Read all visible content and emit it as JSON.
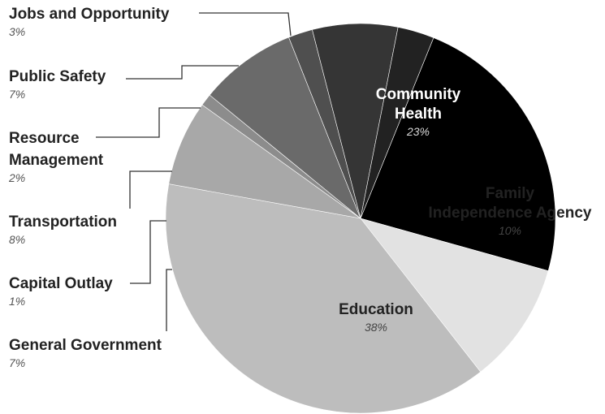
{
  "chart_data": {
    "type": "pie",
    "title": "",
    "slices": [
      {
        "label": "Community Health",
        "lines": [
          "Community",
          "Health"
        ],
        "pct_label": "23%",
        "value": 23,
        "color": "#000000",
        "text_color": "#ffffff",
        "pct_color": "#d8d8d8"
      },
      {
        "label": "Family Independence Agency",
        "lines": [
          "Family",
          "Independence Agency"
        ],
        "pct_label": "10%",
        "value": 10,
        "color": "#e2e2e2",
        "text_color": "#222222",
        "pct_color": "#444444"
      },
      {
        "label": "Education",
        "lines": [
          "Education"
        ],
        "pct_label": "38%",
        "value": 38,
        "color": "#bdbdbd",
        "text_color": "#222222",
        "pct_color": "#444444"
      },
      {
        "label": "General Government",
        "lines": [
          "General Government"
        ],
        "pct_label": "7%",
        "value": 7,
        "color": "#a8a8a8",
        "text_color": "#222222",
        "pct_color": "#555555"
      },
      {
        "label": "Capital Outlay",
        "lines": [
          "Capital Outlay"
        ],
        "pct_label": "1%",
        "value": 1,
        "color": "#8c8c8c",
        "text_color": "#222222",
        "pct_color": "#555555"
      },
      {
        "label": "Transportation",
        "lines": [
          "Transportation"
        ],
        "pct_label": "8%",
        "value": 8,
        "color": "#6a6a6a",
        "text_color": "#222222",
        "pct_color": "#555555"
      },
      {
        "label": "Resource Management",
        "lines": [
          "Resource",
          "Management"
        ],
        "pct_label": "2%",
        "value": 2,
        "color": "#4f4f4f",
        "text_color": "#222222",
        "pct_color": "#555555"
      },
      {
        "label": "Public Safety",
        "lines": [
          "Public Safety"
        ],
        "pct_label": "7%",
        "value": 7,
        "color": "#353535",
        "text_color": "#222222",
        "pct_color": "#555555"
      },
      {
        "label": "Jobs and Opportunity",
        "lines": [
          "Jobs and Opportunity"
        ],
        "pct_label": "3%",
        "value": 3,
        "color": "#222222",
        "text_color": "#222222",
        "pct_color": "#555555"
      }
    ],
    "legend": "none"
  }
}
